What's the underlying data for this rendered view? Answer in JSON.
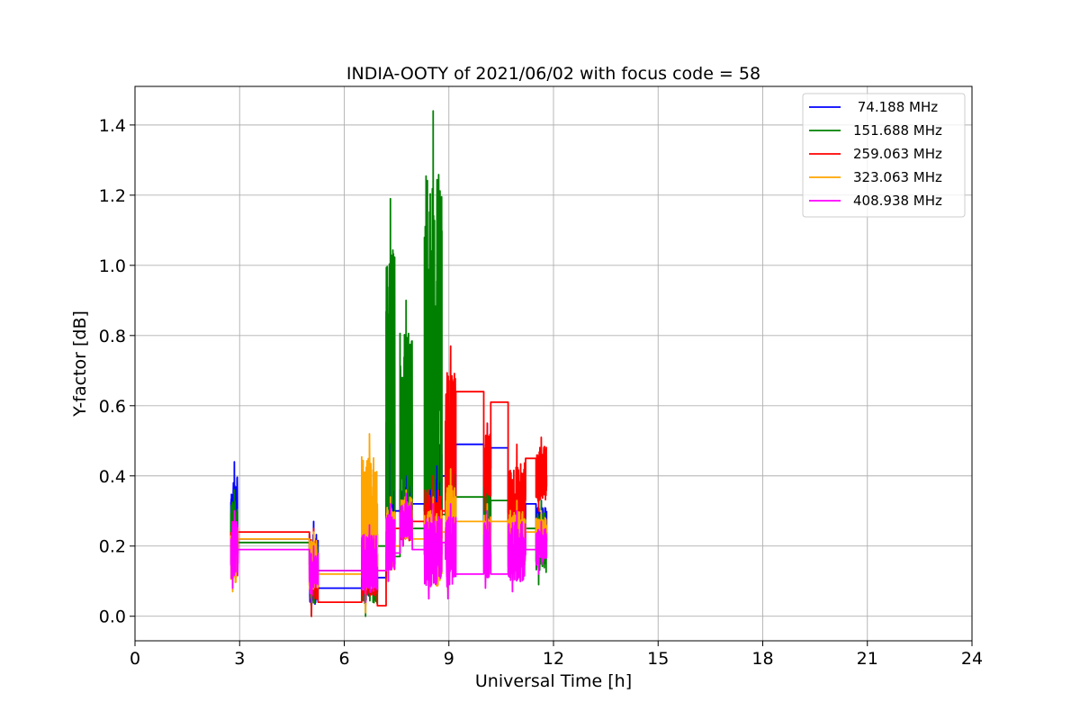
{
  "chart_data": {
    "type": "line",
    "title": "INDIA-OOTY of 2021/06/02 with focus code = 58",
    "xlabel": "Universal Time [h]",
    "ylabel": "Y-factor [dB]",
    "xlim": [
      0,
      24
    ],
    "ylim": [
      -0.07,
      1.51
    ],
    "xticks": [
      0,
      3,
      6,
      9,
      12,
      15,
      18,
      21,
      24
    ],
    "yticks": [
      0.0,
      0.2,
      0.4,
      0.6,
      0.8,
      1.0,
      1.2,
      1.4
    ],
    "xtick_labels": [
      "0",
      "3",
      "6",
      "9",
      "12",
      "15",
      "18",
      "21",
      "24"
    ],
    "ytick_labels": [
      "0.0",
      "0.2",
      "0.4",
      "0.6",
      "0.8",
      "1.0",
      "1.2",
      "1.4"
    ],
    "grid": true,
    "legend_position": "top-right",
    "series": [
      {
        "name": " 74.188 MHz",
        "color": "#0000ff",
        "segments": [
          [
            2.75,
            2.95
          ],
          [
            5.0,
            5.25
          ],
          [
            6.5,
            6.95
          ],
          [
            7.2,
            7.45
          ],
          [
            7.6,
            7.95
          ],
          [
            8.3,
            8.8
          ],
          [
            8.9,
            9.2
          ],
          [
            10.0,
            10.2
          ],
          [
            10.7,
            11.2
          ],
          [
            11.5,
            11.8
          ]
        ],
        "levels": [
          0.23,
          0.22,
          0.08,
          0.11,
          0.3,
          0.32,
          0.4,
          0.49,
          0.48,
          0.32,
          0.3,
          0.27
        ],
        "peaks": [
          0.44,
          0.27,
          0.18,
          0.64,
          0.43,
          0.55,
          0.6,
          0.55,
          0.37,
          0.33
        ],
        "troughs": [
          0.1,
          0.0,
          0.04,
          0.11,
          0.2,
          0.07,
          0.1,
          0.15,
          0.16,
          0.18
        ]
      },
      {
        "name": "151.688 MHz",
        "color": "#008000",
        "segments": [
          [
            2.75,
            2.95
          ],
          [
            5.0,
            5.25
          ],
          [
            6.5,
            6.95
          ],
          [
            7.2,
            7.45
          ],
          [
            7.6,
            7.95
          ],
          [
            8.3,
            8.8
          ],
          [
            8.9,
            9.2
          ],
          [
            10.0,
            10.2
          ],
          [
            10.7,
            11.2
          ],
          [
            11.5,
            11.8
          ]
        ],
        "levels": [
          0.2,
          0.21,
          0.13,
          0.2,
          0.17,
          0.25,
          0.29,
          0.34,
          0.33,
          0.25,
          0.24
        ],
        "peaks": [
          0.36,
          0.24,
          0.28,
          1.19,
          0.9,
          1.44,
          0.54,
          0.5,
          0.36,
          0.33
        ],
        "troughs": [
          0.1,
          0.0,
          0.0,
          0.1,
          0.2,
          0.05,
          0.08,
          0.12,
          0.1,
          0.09
        ]
      },
      {
        "name": "259.063 MHz",
        "color": "#ff0000",
        "segments": [
          [
            2.75,
            2.95
          ],
          [
            5.0,
            5.25
          ],
          [
            6.5,
            6.95
          ],
          [
            7.2,
            7.45
          ],
          [
            7.6,
            7.95
          ],
          [
            8.3,
            8.8
          ],
          [
            8.9,
            9.2
          ],
          [
            10.0,
            10.2
          ],
          [
            10.7,
            11.2
          ],
          [
            11.5,
            11.8
          ]
        ],
        "levels": [
          0.24,
          0.24,
          0.04,
          0.03,
          0.25,
          0.27,
          0.3,
          0.64,
          0.61,
          0.45,
          0.37,
          0.38
        ],
        "peaks": [
          0.3,
          0.25,
          0.24,
          0.3,
          0.32,
          0.4,
          0.77,
          0.55,
          0.49,
          0.51
        ],
        "troughs": [
          0.1,
          0.0,
          0.03,
          0.1,
          0.2,
          0.1,
          0.2,
          0.3,
          0.1,
          0.3
        ]
      },
      {
        "name": "323.063 MHz",
        "color": "#ffa500",
        "segments": [
          [
            2.75,
            2.95
          ],
          [
            5.0,
            5.25
          ],
          [
            6.5,
            6.95
          ],
          [
            7.2,
            7.45
          ],
          [
            7.6,
            7.95
          ],
          [
            8.3,
            8.8
          ],
          [
            8.9,
            9.2
          ],
          [
            10.0,
            10.2
          ],
          [
            10.7,
            11.2
          ],
          [
            11.5,
            11.8
          ]
        ],
        "levels": [
          0.23,
          0.22,
          0.12,
          0.13,
          0.2,
          0.22,
          0.24,
          0.27,
          0.27,
          0.24,
          0.26
        ],
        "peaks": [
          0.28,
          0.24,
          0.52,
          0.34,
          0.36,
          0.34,
          0.42,
          0.32,
          0.33,
          0.3
        ],
        "troughs": [
          0.07,
          0.05,
          0.01,
          0.1,
          0.2,
          0.05,
          0.07,
          0.1,
          0.1,
          0.15
        ]
      },
      {
        "name": "408.938 MHz",
        "color": "#ff00ff",
        "segments": [
          [
            2.75,
            2.95
          ],
          [
            5.0,
            5.25
          ],
          [
            6.5,
            6.95
          ],
          [
            7.2,
            7.45
          ],
          [
            7.6,
            7.95
          ],
          [
            8.3,
            8.8
          ],
          [
            8.9,
            9.2
          ],
          [
            10.0,
            10.2
          ],
          [
            10.7,
            11.2
          ],
          [
            11.5,
            11.8
          ]
        ],
        "levels": [
          0.19,
          0.19,
          0.13,
          0.13,
          0.18,
          0.19,
          0.21,
          0.12,
          0.12,
          0.19,
          0.22
        ],
        "peaks": [
          0.3,
          0.2,
          0.26,
          0.32,
          0.35,
          0.32,
          0.32,
          0.3,
          0.3,
          0.27
        ],
        "troughs": [
          0.08,
          0.04,
          0.04,
          0.1,
          0.2,
          0.05,
          0.05,
          0.08,
          0.07,
          0.12
        ]
      }
    ]
  }
}
